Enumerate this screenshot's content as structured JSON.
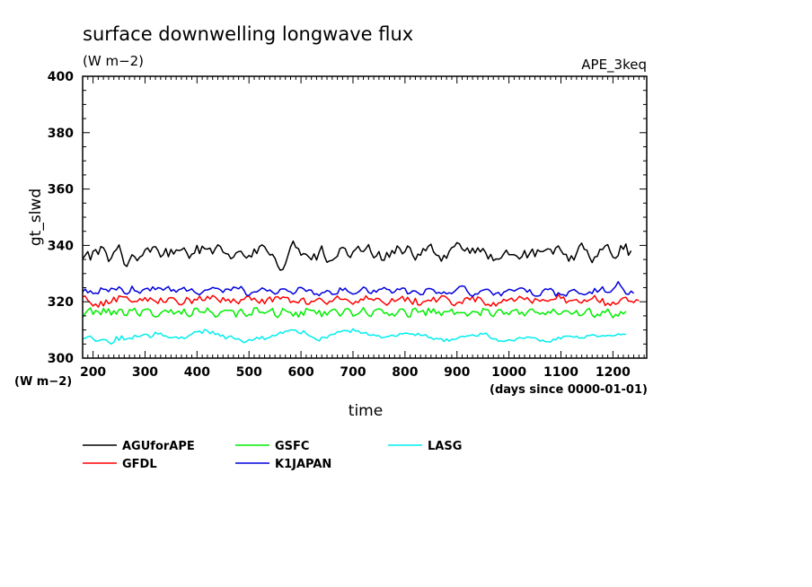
{
  "chart_data": {
    "type": "line",
    "title": "surface downwelling longwave flux",
    "subtitle": "(W m−2)",
    "tag": "APE_3keq",
    "xlabel": "time",
    "ylabel": "gt_slwd",
    "y_unit_label": "(W m−2)",
    "x_unit_label": "(days since 0000-01-01)",
    "xlim": [
      180,
      1265
    ],
    "ylim": [
      300,
      400
    ],
    "x_ticks": [
      200,
      300,
      400,
      500,
      600,
      700,
      800,
      900,
      1000,
      1100,
      1200
    ],
    "y_ticks": [
      300,
      320,
      340,
      360,
      380,
      400
    ],
    "x_step": 5,
    "series": [
      {
        "name": "AGUforAPE",
        "color": "#000000",
        "values": [
          335.2,
          336.5,
          337.8,
          334.8,
          337.9,
          338.5,
          336.8,
          339.6,
          339.1,
          337.5,
          334.3,
          335.4,
          337.6,
          338.5,
          340.2,
          337.0,
          333.3,
          332.5,
          334.7,
          336.7,
          336.0,
          334.6,
          335.9,
          336.4,
          338.4,
          339.1,
          337.6,
          339.4,
          339.6,
          338.2,
          335.9,
          336.7,
          338.9,
          336.0,
          338.6,
          336.9,
          338.4,
          338.2,
          338.4,
          339.1,
          337.5,
          335.4,
          336.9,
          337.2,
          340.0,
          337.1,
          339.7,
          338.8,
          338.7,
          339.0,
          337.0,
          338.8,
          340.2,
          339.6,
          337.6,
          337.1,
          336.9,
          335.3,
          335.8,
          337.3,
          337.8,
          337.9,
          336.4,
          335.5,
          336.4,
          335.9,
          338.7,
          337.1,
          339.6,
          340.2,
          339.5,
          337.9,
          336.6,
          336.8,
          335.4,
          332.8,
          331.2,
          331.4,
          333.4,
          336.4,
          339.5,
          341.5,
          339.3,
          338.9,
          336.5,
          337.1,
          336.8,
          335.9,
          334.9,
          337.0,
          334.8,
          337.7,
          339.8,
          336.2,
          334.0,
          334.5,
          334.7,
          335.4,
          336.1,
          338.9,
          339.3,
          338.9,
          336.5,
          335.7,
          337.7,
          338.6,
          339.7,
          338.0,
          337.8,
          338.9,
          340.3,
          337.5,
          335.6,
          336.2,
          337.8,
          334.8,
          334.7,
          337.5,
          335.8,
          338.2,
          337.1,
          339.8,
          338.9,
          337.0,
          337.8,
          339.8,
          339.1,
          336.5,
          334.8,
          336.9,
          336.5,
          338.9,
          338.1,
          339.7,
          340.4,
          337.7,
          336.6,
          336.3,
          334.4,
          336.5,
          335.4,
          337.9,
          339.2,
          339.6,
          341.0,
          340.5,
          338.7,
          338.0,
          339.1,
          337.2,
          339.0,
          337.3,
          339.1,
          337.7,
          338.9,
          337.5,
          335.2,
          336.8,
          334.6,
          335.2,
          335.1,
          335.5,
          337.0,
          338.3,
          336.7,
          336.7,
          336.7,
          336.2,
          335.2,
          336.0,
          338.2,
          335.6,
          337.2,
          338.7,
          336.0,
          338.4,
          337.8,
          337.8,
          338.3,
          338.8,
          338.6,
          336.9,
          339.1,
          339.8,
          338.2,
          336.8,
          336.8,
          334.4,
          336.3,
          334.8,
          337.2,
          339.7,
          340.8,
          338.6,
          338.3,
          335.8,
          333.9,
          335.9,
          336.1,
          338.6,
          338.5,
          339.8,
          340.3,
          337.7,
          335.8,
          335.4,
          336.4,
          339.9,
          338.6,
          340.5,
          336.5,
          338.1
        ]
      },
      {
        "name": "GFDL",
        "color": "#ff0000",
        "values": [
          321.8,
          322.0,
          320.5,
          319.6,
          318.5,
          319.2,
          318.1,
          320.1,
          318.5,
          320.6,
          319.3,
          319.8,
          321.6,
          320.0,
          322.1,
          321.8,
          321.7,
          321.7,
          320.5,
          319.9,
          320.1,
          320.1,
          321.1,
          320.4,
          321.5,
          320.2,
          321.4,
          320.7,
          320.2,
          319.4,
          321.3,
          319.9,
          319.8,
          321.2,
          321.5,
          321.3,
          320.4,
          319.1,
          318.9,
          319.6,
          321.5,
          320.9,
          319.4,
          320.9,
          320.6,
          322.0,
          320.5,
          320.5,
          321.9,
          321.0,
          322.2,
          321.7,
          320.7,
          319.8,
          321.5,
          320.3,
          320.9,
          319.7,
          321.0,
          320.0,
          319.3,
          320.8,
          320.8,
          321.8,
          322.0,
          320.6,
          321.3,
          320.3,
          319.5,
          320.9,
          319.3,
          320.9,
          321.7,
          320.0,
          321.6,
          321.8,
          321.0,
          321.7,
          321.5,
          321.5,
          319.7,
          320.2,
          319.9,
          319.6,
          320.9,
          321.3,
          319.2,
          319.1,
          320.2,
          320.1,
          320.8,
          321.3,
          320.8,
          319.8,
          319.1,
          320.2,
          320.1,
          321.1,
          322.0,
          321.0,
          320.8,
          321.0,
          320.6,
          319.8,
          319.1,
          320.1,
          319.7,
          321.0,
          320.6,
          322.1,
          321.0,
          321.0,
          320.5,
          321.2,
          321.1,
          320.2,
          319.5,
          318.8,
          319.6,
          321.1,
          320.1,
          320.6,
          321.1,
          321.9,
          320.2,
          321.6,
          320.3,
          319.1,
          321.2,
          318.9,
          318.9,
          320.0,
          320.2,
          320.6,
          320.3,
          321.6,
          319.9,
          320.9,
          322.0,
          322.1,
          321.5,
          320.6,
          319.1,
          318.6,
          319.6,
          319.9,
          319.4,
          321.1,
          321.5,
          320.7,
          321.9,
          320.0,
          321.7,
          321.3,
          320.1,
          318.8,
          319.1,
          318.4,
          319.7,
          318.5,
          319.6,
          319.7,
          320.9,
          320.3,
          320.8,
          321.3,
          320.2,
          320.8,
          321.9,
          321.4,
          320.8,
          321.5,
          320.4,
          319.5,
          321.1,
          320.7,
          320.2,
          320.8,
          320.4,
          320.2,
          320.7,
          320.8,
          321.0,
          322.6,
          321.2,
          321.7,
          319.6,
          320.3,
          320.4,
          320.6,
          320.8,
          319.8,
          319.6,
          320.7,
          320.1,
          320.7,
          321.1,
          322.2,
          320.5,
          319.7,
          321.1,
          318.7,
          319.5,
          318.7,
          319.9,
          319.1,
          319.5,
          320.8,
          321.4,
          321.6,
          320.2,
          320.2,
          319.7,
          320.7,
          320.4
        ]
      },
      {
        "name": "GSFC",
        "color": "#00ee00",
        "values": [
          314.5,
          315.9,
          317.0,
          317.8,
          315.5,
          316.9,
          316.5,
          315.4,
          317.6,
          316.1,
          317.5,
          315.3,
          316.8,
          315.6,
          317.3,
          317.3,
          315.3,
          315.1,
          317.2,
          316.9,
          317.7,
          315.8,
          314.9,
          316.9,
          317.3,
          317.5,
          317.0,
          315.1,
          314.6,
          314.8,
          316.0,
          316.7,
          317.0,
          316.2,
          317.2,
          315.6,
          316.2,
          316.7,
          315.6,
          317.4,
          315.5,
          314.7,
          315.2,
          317.6,
          317.7,
          316.4,
          316.3,
          316.2,
          317.8,
          316.6,
          316.0,
          314.6,
          314.9,
          316.3,
          316.7,
          317.0,
          316.9,
          317.0,
          316.7,
          314.6,
          316.6,
          317.4,
          315.8,
          314.8,
          315.5,
          315.3,
          317.8,
          317.9,
          316.2,
          316.3,
          315.9,
          316.4,
          316.8,
          317.6,
          315.2,
          314.4,
          315.5,
          317.6,
          316.9,
          316.4,
          316.2,
          314.9,
          316.3,
          314.6,
          316.5,
          315.2,
          317.6,
          317.2,
          316.9,
          316.9,
          315.7,
          316.9,
          314.7,
          316.5,
          315.3,
          316.5,
          317.1,
          317.4,
          316.4,
          314.9,
          315.9,
          317.4,
          317.6,
          316.8,
          314.9,
          315.3,
          315.7,
          316.6,
          317.9,
          316.3,
          315.1,
          314.8,
          316.7,
          317.3,
          317.5,
          317.2,
          315.9,
          316.1,
          315.1,
          315.8,
          314.9,
          316.0,
          317.3,
          317.5,
          316.6,
          314.7,
          314.6,
          317.4,
          317.7,
          316.3,
          316.5,
          316.9,
          315.1,
          317.7,
          316.1,
          317.5,
          315.8,
          316.5,
          315.1,
          316.5,
          316.5,
          316.6,
          317.4,
          315.5,
          316.2,
          316.1,
          316.1,
          316.1,
          314.9,
          315.7,
          316.6,
          316.4,
          316.3,
          315.1,
          317.6,
          317.2,
          317.1,
          315.3,
          314.7,
          316.2,
          317.2,
          317.1,
          315.6,
          316.2,
          315.4,
          316.7,
          317.0,
          317.3,
          315.6,
          316.3,
          315.0,
          316.2,
          317.3,
          317.4,
          316.3,
          316.2,
          315.6,
          316.1,
          315.4,
          316.5,
          316.0,
          317.4,
          316.4,
          315.5,
          315.7,
          316.7,
          316.8,
          316.5,
          315.6,
          316.0,
          316.9,
          315.1,
          315.2,
          315.9,
          317.2,
          317.6,
          315.3,
          314.5,
          315.6,
          315.0,
          316.6,
          316.2,
          317.4,
          315.8,
          314.3,
          315.5,
          314.9,
          316.5,
          315.7,
          316.6
        ]
      },
      {
        "name": "K1JAPAN",
        "color": "#0000dd",
        "values": [
          323.6,
          324.5,
          323.2,
          323.9,
          322.9,
          323.1,
          322.9,
          324.9,
          324.4,
          324.4,
          323.6,
          324.8,
          324.6,
          324.2,
          325.3,
          324.6,
          323.1,
          322.7,
          323.3,
          325.5,
          323.9,
          323.7,
          323.0,
          324.1,
          324.6,
          324.8,
          323.9,
          325.3,
          324.3,
          325.0,
          324.8,
          324.1,
          324.8,
          325.4,
          323.8,
          324.3,
          323.4,
          324.3,
          324.6,
          325.1,
          323.8,
          324.1,
          324.6,
          323.5,
          322.9,
          322.5,
          323.3,
          324.1,
          324.2,
          324.5,
          325.1,
          324.8,
          324.7,
          324.2,
          323.3,
          324.5,
          324.5,
          324.0,
          325.2,
          325.0,
          324.6,
          325.4,
          324.2,
          322.4,
          322.2,
          323.2,
          323.5,
          323.5,
          324.1,
          324.9,
          324.5,
          323.8,
          324.2,
          323.4,
          322.7,
          323.1,
          324.4,
          324.6,
          324.5,
          323.8,
          323.5,
          322.7,
          323.4,
          325.0,
          325.1,
          324.6,
          323.7,
          324.2,
          324.1,
          322.6,
          322.8,
          322.2,
          323.2,
          323.3,
          324.0,
          323.7,
          322.6,
          322.7,
          322.8,
          324.9,
          324.0,
          324.8,
          323.7,
          323.2,
          322.7,
          322.9,
          323.4,
          324.2,
          325.2,
          324.8,
          323.3,
          322.9,
          324.1,
          323.4,
          324.4,
          324.5,
          325.1,
          324.4,
          324.3,
          323.1,
          323.5,
          324.6,
          324.3,
          324.9,
          324.7,
          322.8,
          323.1,
          323.9,
          323.8,
          323.2,
          322.5,
          322.6,
          324.4,
          324.7,
          324.6,
          324.2,
          323.0,
          323.3,
          322.9,
          323.5,
          322.8,
          323.2,
          322.9,
          323.6,
          324.5,
          325.4,
          325.6,
          325.4,
          323.7,
          322.5,
          321.9,
          322.8,
          322.7,
          323.8,
          324.1,
          324.4,
          324.4,
          323.6,
          322.4,
          323.0,
          323.3,
          322.1,
          323.4,
          323.8,
          324.4,
          324.2,
          323.8,
          324.3,
          324.8,
          324.9,
          324.5,
          323.4,
          324.3,
          322.6,
          322.0,
          322.0,
          322.2,
          323.8,
          324.6,
          324.3,
          324.7,
          324.0,
          322.0,
          323.2,
          322.5,
          322.5,
          322.0,
          323.6,
          324.0,
          324.4,
          323.7,
          322.9,
          322.8,
          322.5,
          322.8,
          323.5,
          322.9,
          324.7,
          323.4,
          324.2,
          325.3,
          323.5,
          323.3,
          323.4,
          324.4,
          325.4,
          327.1,
          325.6,
          324.4,
          322.8,
          322.6,
          323.8,
          323.0
        ]
      },
      {
        "name": "LASG",
        "color": "#00eeee",
        "values": [
          306.8,
          307.1,
          307.6,
          307.8,
          306.9,
          306.0,
          306.1,
          306.5,
          306.6,
          306.5,
          305.7,
          305.0,
          305.6,
          307.6,
          306.3,
          307.9,
          306.5,
          306.8,
          307.1,
          306.8,
          308.1,
          307.6,
          307.7,
          308.2,
          308.5,
          308.3,
          307.3,
          307.8,
          309.2,
          308.5,
          308.9,
          307.9,
          307.9,
          307.3,
          307.2,
          307.4,
          307.5,
          306.9,
          307.5,
          306.9,
          307.3,
          308.1,
          308.5,
          309.3,
          309.3,
          309.6,
          308.8,
          310.2,
          309.7,
          308.7,
          309.5,
          308.4,
          308.7,
          307.8,
          308.2,
          306.8,
          307.5,
          307.9,
          307.1,
          306.7,
          306.9,
          306.2,
          305.5,
          305.9,
          306.6,
          306.3,
          306.6,
          307.4,
          306.8,
          307.7,
          306.6,
          307.1,
          307.3,
          308.1,
          307.9,
          308.4,
          309.2,
          308.8,
          309.6,
          309.6,
          310.0,
          310.0,
          309.9,
          309.0,
          308.7,
          309.7,
          308.7,
          308.0,
          307.6,
          307.2,
          306.5,
          306.1,
          307.4,
          307.4,
          307.1,
          308.2,
          308.4,
          308.5,
          309.4,
          309.3,
          309.7,
          309.8,
          309.7,
          309.1,
          310.4,
          309.6,
          309.7,
          308.9,
          308.9,
          309.1,
          308.2,
          308.1,
          308.3,
          307.9,
          308.0,
          307.2,
          307.4,
          307.6,
          307.8,
          308.2,
          307.8,
          307.8,
          308.7,
          308.6,
          308.9,
          308.8,
          308.5,
          308.6,
          308.0,
          308.8,
          308.1,
          308.1,
          308.3,
          307.3,
          307.3,
          306.6,
          307.0,
          306.8,
          306.9,
          305.9,
          306.8,
          306.0,
          306.7,
          306.6,
          306.9,
          307.5,
          307.7,
          307.6,
          307.9,
          308.0,
          308.3,
          307.9,
          307.8,
          308.8,
          308.5,
          308.9,
          308.1,
          307.0,
          306.8,
          306.8,
          306.0,
          306.1,
          305.9,
          306.2,
          306.5,
          306.3,
          306.1,
          306.9,
          307.3,
          307.1,
          307.0,
          307.5,
          307.4,
          307.2,
          307.2,
          306.7,
          306.0,
          306.4,
          305.8,
          305.8,
          305.7,
          306.7,
          306.5,
          307.4,
          306.8,
          307.7,
          307.8,
          307.8,
          307.7,
          307.4,
          307.8,
          307.1,
          307.2,
          307.1,
          308.0,
          308.0,
          308.3,
          308.2,
          307.6,
          307.7,
          308.0,
          307.8,
          308.1,
          308.0,
          307.9,
          308.1,
          308.6,
          308.3,
          308.5,
          308.4
        ]
      }
    ]
  }
}
